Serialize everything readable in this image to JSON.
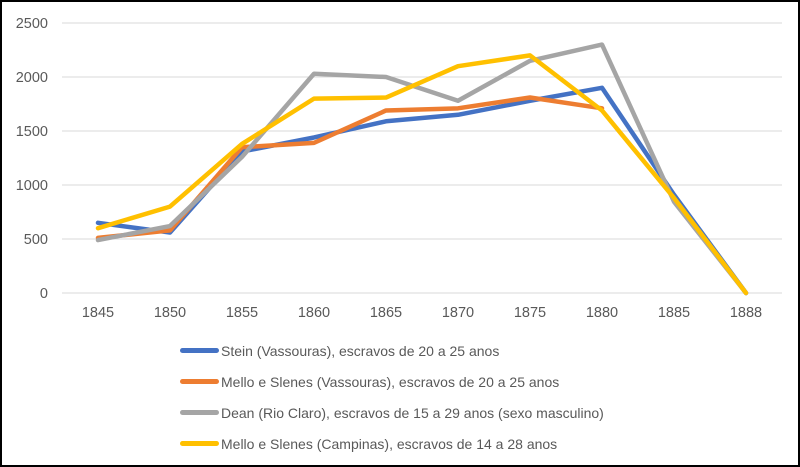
{
  "chart_data": {
    "type": "line",
    "categories": [
      "1845",
      "1850",
      "1855",
      "1860",
      "1865",
      "1870",
      "1875",
      "1880",
      "1885",
      "1888"
    ],
    "series": [
      {
        "name": "Stein (Vassouras), escravos de 20 a 25 anos",
        "color": "#4472C4",
        "values": [
          650,
          560,
          1310,
          1440,
          1590,
          1650,
          1780,
          1900,
          910,
          0
        ]
      },
      {
        "name": "Mello e Slenes (Vassouras), escravos de 20 a 25 anos",
        "color": "#ED7D31",
        "values": [
          510,
          580,
          1350,
          1390,
          1690,
          1710,
          1810,
          1710,
          null,
          null
        ]
      },
      {
        "name": "Dean (Rio Claro), escravos de 15 a 29 anos (sexo masculino)",
        "color": "#A5A5A5",
        "values": [
          490,
          620,
          1260,
          2030,
          2000,
          1780,
          2150,
          2300,
          845,
          0
        ]
      },
      {
        "name": "Mello e Slenes (Campinas), escravos de 14 a 28 anos",
        "color": "#FFC000",
        "values": [
          600,
          800,
          1380,
          1800,
          1810,
          2100,
          2200,
          1690,
          880,
          0
        ]
      }
    ],
    "title": "",
    "xlabel": "",
    "ylabel": "",
    "ylim": [
      0,
      2500
    ],
    "ytick_step": 500,
    "yticks": [
      0,
      500,
      1000,
      1500,
      2000,
      2500
    ],
    "grid": true,
    "legend_position": "bottom"
  },
  "style": {
    "grid_color": "#D9D9D9",
    "axis_text_color": "#595959",
    "background": "#FFFFFF",
    "border_color": "#000000"
  }
}
